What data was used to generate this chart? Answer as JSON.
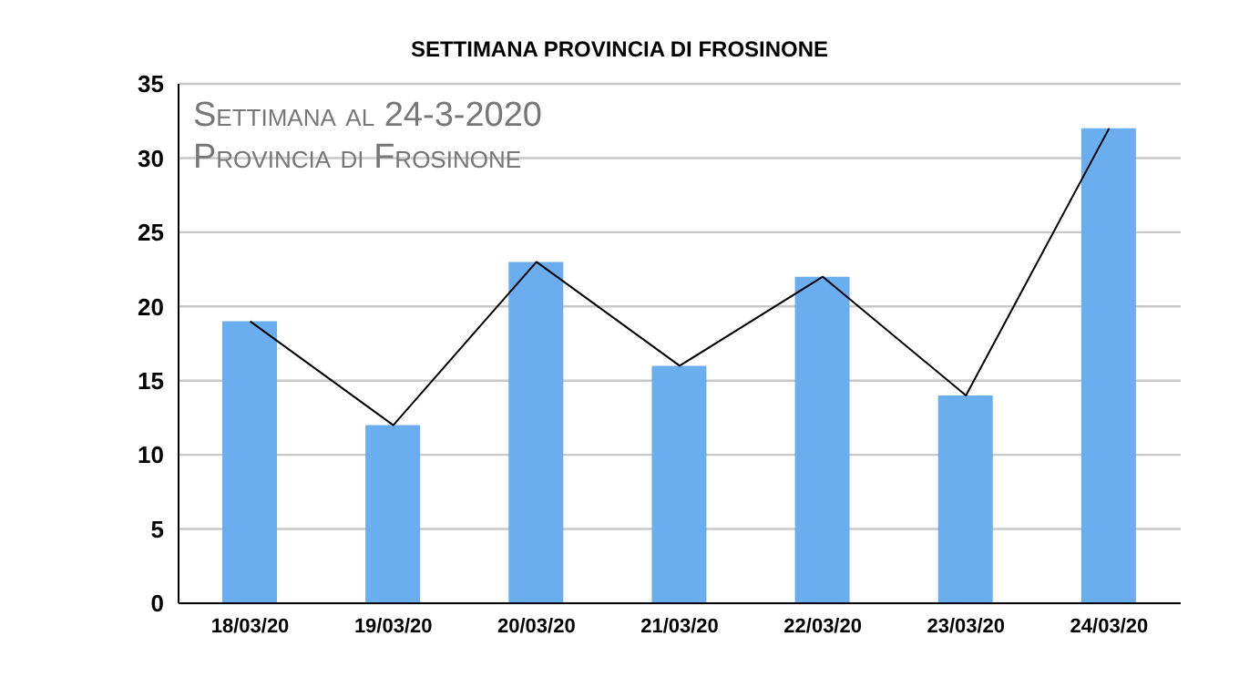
{
  "chart_data": {
    "type": "bar",
    "title": "SETTIMANA PROVINCIA DI FROSINONE",
    "annotations": [
      "Settimana al 24-3-2020",
      "Provincia di Frosinone"
    ],
    "categories": [
      "18/03/20",
      "19/03/20",
      "20/03/20",
      "21/03/20",
      "22/03/20",
      "23/03/20",
      "24/03/20"
    ],
    "series": [
      {
        "color": "#6aaef0",
        "values": [
          19,
          12,
          23,
          16,
          22,
          14,
          32
        ]
      },
      {
        "type": "line",
        "color": "#000000",
        "values": [
          19,
          12,
          23,
          16,
          22,
          14,
          32
        ]
      }
    ],
    "ylim": [
      0,
      35
    ],
    "yticks": [
      0,
      5,
      10,
      15,
      20,
      25,
      30,
      35
    ],
    "grid": "y",
    "legend": false,
    "marker": "none",
    "line_style": "solid"
  }
}
